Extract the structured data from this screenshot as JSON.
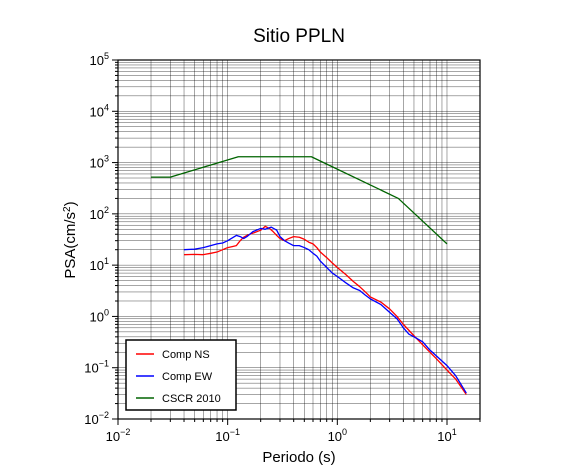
{
  "chart_data": {
    "type": "line",
    "title": "Sitio PPLN",
    "xlabel": "Periodo (s)",
    "ylabel_main": "PSA(cm/s",
    "ylabel_sup": "2",
    "ylabel_close": ")",
    "x_scale": "log",
    "y_scale": "log",
    "xlim": [
      0.01,
      20
    ],
    "ylim": [
      0.01,
      100000
    ],
    "grid": true,
    "legend_position": "bottom-left",
    "x_ticks": [
      {
        "base": "10",
        "exp": "−2",
        "value": 0.01
      },
      {
        "base": "10",
        "exp": "−1",
        "value": 0.1
      },
      {
        "base": "10",
        "exp": "0",
        "value": 1
      },
      {
        "base": "10",
        "exp": "1",
        "value": 10
      }
    ],
    "y_ticks": [
      {
        "base": "10",
        "exp": "−2",
        "value": 0.01
      },
      {
        "base": "10",
        "exp": "−1",
        "value": 0.1
      },
      {
        "base": "10",
        "exp": "0",
        "value": 1
      },
      {
        "base": "10",
        "exp": "1",
        "value": 10
      },
      {
        "base": "10",
        "exp": "2",
        "value": 100
      },
      {
        "base": "10",
        "exp": "3",
        "value": 1000
      },
      {
        "base": "10",
        "exp": "4",
        "value": 10000
      },
      {
        "base": "10",
        "exp": "5",
        "value": 100000
      }
    ],
    "series": [
      {
        "name": "Comp NS",
        "color": "#ff0000",
        "points": [
          [
            0.04,
            16
          ],
          [
            0.05,
            16.2
          ],
          [
            0.06,
            16
          ],
          [
            0.07,
            17
          ],
          [
            0.08,
            18
          ],
          [
            0.09,
            20
          ],
          [
            0.1,
            22
          ],
          [
            0.11,
            23
          ],
          [
            0.12,
            24
          ],
          [
            0.13,
            30
          ],
          [
            0.14,
            35
          ],
          [
            0.15,
            38
          ],
          [
            0.17,
            42
          ],
          [
            0.2,
            48
          ],
          [
            0.22,
            57
          ],
          [
            0.24,
            52
          ],
          [
            0.26,
            45
          ],
          [
            0.28,
            38
          ],
          [
            0.3,
            33
          ],
          [
            0.33,
            30
          ],
          [
            0.36,
            33
          ],
          [
            0.4,
            36
          ],
          [
            0.45,
            35
          ],
          [
            0.5,
            32
          ],
          [
            0.55,
            28
          ],
          [
            0.6,
            26
          ],
          [
            0.65,
            22
          ],
          [
            0.7,
            18
          ],
          [
            0.8,
            14
          ],
          [
            0.9,
            11
          ],
          [
            1.0,
            9
          ],
          [
            1.2,
            6.5
          ],
          [
            1.4,
            4.8
          ],
          [
            1.6,
            3.8
          ],
          [
            1.8,
            3.0
          ],
          [
            2.0,
            2.4
          ],
          [
            2.5,
            1.9
          ],
          [
            3.0,
            1.4
          ],
          [
            3.5,
            1.0
          ],
          [
            4.0,
            0.7
          ],
          [
            5.0,
            0.42
          ],
          [
            6.0,
            0.28
          ],
          [
            7.0,
            0.2
          ],
          [
            8.0,
            0.15
          ],
          [
            10.0,
            0.09
          ],
          [
            12.0,
            0.06
          ],
          [
            15.0,
            0.03
          ]
        ]
      },
      {
        "name": "Comp EW",
        "color": "#0000ff",
        "points": [
          [
            0.04,
            20
          ],
          [
            0.05,
            20.5
          ],
          [
            0.06,
            22
          ],
          [
            0.07,
            24
          ],
          [
            0.08,
            26
          ],
          [
            0.09,
            27
          ],
          [
            0.1,
            30
          ],
          [
            0.11,
            34
          ],
          [
            0.12,
            38
          ],
          [
            0.13,
            36
          ],
          [
            0.14,
            33
          ],
          [
            0.15,
            36
          ],
          [
            0.17,
            45
          ],
          [
            0.2,
            52
          ],
          [
            0.22,
            50
          ],
          [
            0.25,
            55
          ],
          [
            0.28,
            48
          ],
          [
            0.3,
            36
          ],
          [
            0.33,
            30
          ],
          [
            0.36,
            27
          ],
          [
            0.4,
            24
          ],
          [
            0.45,
            24
          ],
          [
            0.5,
            22
          ],
          [
            0.55,
            20
          ],
          [
            0.6,
            17
          ],
          [
            0.65,
            15
          ],
          [
            0.7,
            12
          ],
          [
            0.8,
            9
          ],
          [
            0.9,
            7
          ],
          [
            1.0,
            6
          ],
          [
            1.2,
            4.5
          ],
          [
            1.4,
            3.6
          ],
          [
            1.6,
            3.2
          ],
          [
            1.8,
            2.6
          ],
          [
            2.0,
            2.2
          ],
          [
            2.5,
            1.7
          ],
          [
            3.0,
            1.2
          ],
          [
            3.5,
            0.9
          ],
          [
            4.0,
            0.6
          ],
          [
            4.5,
            0.45
          ],
          [
            5.0,
            0.4
          ],
          [
            6.0,
            0.32
          ],
          [
            7.0,
            0.22
          ],
          [
            8.0,
            0.17
          ],
          [
            10.0,
            0.11
          ],
          [
            12.0,
            0.07
          ],
          [
            15.0,
            0.032
          ]
        ]
      },
      {
        "name": "CSCR 2010",
        "color": "#006400",
        "points": [
          [
            0.02,
            520
          ],
          [
            0.03,
            520
          ],
          [
            0.125,
            1300
          ],
          [
            0.58,
            1300
          ],
          [
            3.6,
            200
          ],
          [
            10.0,
            26
          ]
        ]
      }
    ]
  }
}
